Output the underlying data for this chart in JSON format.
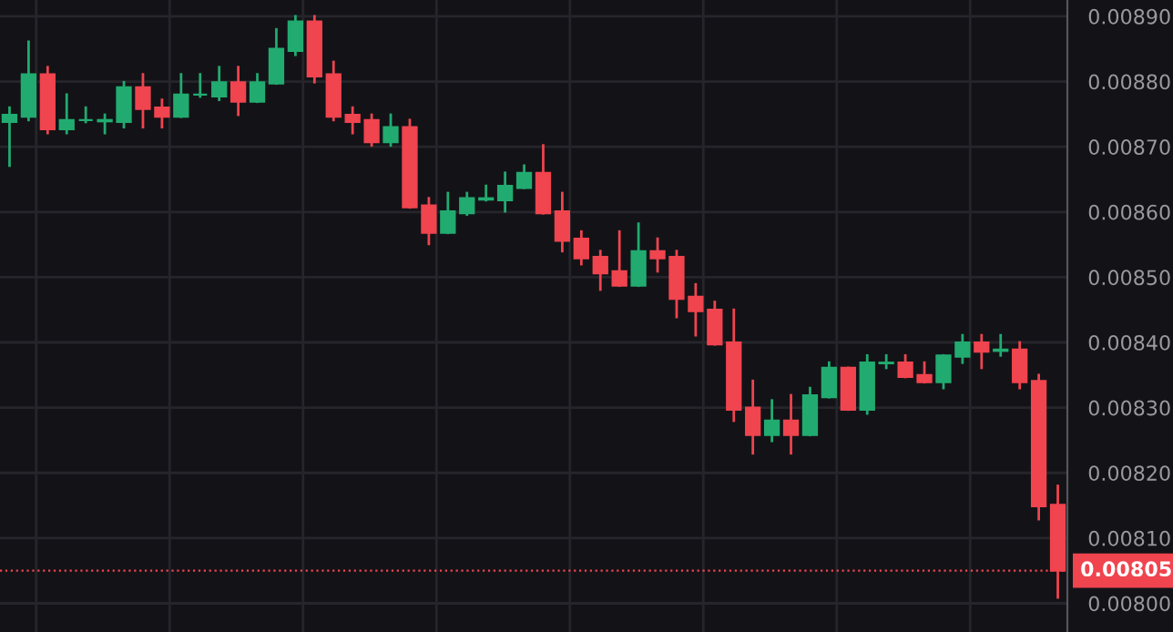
{
  "chart_data": {
    "type": "candlestick",
    "categories": [
      null,
      null,
      null,
      null,
      null,
      null,
      null,
      null,
      null,
      null,
      null,
      null,
      null,
      null,
      null,
      null,
      null,
      null,
      null,
      null,
      null,
      null,
      null,
      null,
      null,
      null,
      null,
      null,
      null,
      null,
      null,
      null,
      null,
      null,
      null,
      null,
      null,
      null,
      null,
      null,
      null,
      null,
      null,
      null,
      null,
      null,
      null,
      null,
      null,
      null,
      null,
      null,
      null,
      null,
      null,
      null
    ],
    "ohlc": [
      [
        0.008738,
        0.00876,
        0.008671,
        0.008749
      ],
      [
        0.008746,
        0.008861,
        0.008741,
        0.008811
      ],
      [
        0.008811,
        0.008822,
        0.008721,
        0.008727
      ],
      [
        0.008727,
        0.00878,
        0.008721,
        0.008741
      ],
      [
        0.008741,
        0.00876,
        0.008738,
        0.008741
      ],
      [
        0.008739,
        0.008749,
        0.008721,
        0.008741
      ],
      [
        0.008738,
        0.008799,
        0.00873,
        0.008791
      ],
      [
        0.008791,
        0.008811,
        0.00873,
        0.008758
      ],
      [
        0.00876,
        0.008772,
        0.00873,
        0.008746
      ],
      [
        0.008746,
        0.008811,
        0.008746,
        0.00878
      ],
      [
        0.00878,
        0.008811,
        0.008777,
        0.00878
      ],
      [
        0.008777,
        0.008822,
        0.008772,
        0.008799
      ],
      [
        0.008799,
        0.008822,
        0.008749,
        0.008769
      ],
      [
        0.008769,
        0.008811,
        0.008769,
        0.008799
      ],
      [
        0.008797,
        0.00888,
        0.008797,
        0.00885
      ],
      [
        0.008847,
        0.0089,
        0.008841,
        0.008892
      ],
      [
        0.008892,
        0.0089,
        0.008799,
        0.008808
      ],
      [
        0.008811,
        0.00883,
        0.008741,
        0.008746
      ],
      [
        0.008749,
        0.00876,
        0.008721,
        0.008738
      ],
      [
        0.008741,
        0.008749,
        0.008702,
        0.008707
      ],
      [
        0.008707,
        0.008749,
        0.008702,
        0.00873
      ],
      [
        0.00873,
        0.008741,
        0.008607,
        0.008607
      ],
      [
        0.00861,
        0.008621,
        0.008551,
        0.008568
      ],
      [
        0.008568,
        0.008629,
        0.008568,
        0.008601
      ],
      [
        0.008598,
        0.008629,
        0.008596,
        0.008621
      ],
      [
        0.008619,
        0.00864,
        0.008618,
        0.008621
      ],
      [
        0.008618,
        0.00866,
        0.008601,
        0.00864
      ],
      [
        0.008637,
        0.008671,
        0.008637,
        0.00866
      ],
      [
        0.00866,
        0.008702,
        0.008598,
        0.008598
      ],
      [
        0.008601,
        0.008629,
        0.00854,
        0.008556
      ],
      [
        0.008559,
        0.00857,
        0.00852,
        0.008529
      ],
      [
        0.008531,
        0.00854,
        0.008481,
        0.008506
      ],
      [
        0.008509,
        0.00857,
        0.008487,
        0.008487
      ],
      [
        0.008487,
        0.008582,
        0.008487,
        0.00854
      ],
      [
        0.00854,
        0.008559,
        0.008509,
        0.008529
      ],
      [
        0.008531,
        0.00854,
        0.008439,
        0.008467
      ],
      [
        0.00847,
        0.008489,
        0.008411,
        0.008448
      ],
      [
        0.00845,
        0.008462,
        0.008397,
        0.008397
      ],
      [
        0.0084,
        0.00845,
        0.00828,
        0.008297
      ],
      [
        0.0083,
        0.008341,
        0.00823,
        0.008258
      ],
      [
        0.008258,
        0.008311,
        0.008249,
        0.00828
      ],
      [
        0.00828,
        0.008319,
        0.00823,
        0.008258
      ],
      [
        0.008258,
        0.00833,
        0.008258,
        0.008319
      ],
      [
        0.008316,
        0.008369,
        0.008316,
        0.008361
      ],
      [
        0.008361,
        0.008361,
        0.008297,
        0.008297
      ],
      [
        0.008297,
        0.00838,
        0.008291,
        0.008369
      ],
      [
        0.008368,
        0.00838,
        0.008361,
        0.008369
      ],
      [
        0.008369,
        0.00838,
        0.008347,
        0.008347
      ],
      [
        0.00835,
        0.008369,
        0.008339,
        0.008339
      ],
      [
        0.008339,
        0.00838,
        0.00833,
        0.00838
      ],
      [
        0.008378,
        0.008411,
        0.008369,
        0.0084
      ],
      [
        0.0084,
        0.008411,
        0.008361,
        0.008386
      ],
      [
        0.008387,
        0.008411,
        0.00838,
        0.008389
      ],
      [
        0.008389,
        0.0084,
        0.00833,
        0.008339
      ],
      [
        0.008341,
        0.00835,
        0.008129,
        0.008149
      ],
      [
        0.008151,
        0.00818,
        0.008009,
        0.00805
      ]
    ],
    "colors": [
      "#22ab70",
      "#22ab70",
      "#f0444f",
      "#22ab70",
      "#22ab70",
      "#22ab70",
      "#22ab70",
      "#f0444f",
      "#f0444f",
      "#22ab70",
      "#22ab70",
      "#22ab70",
      "#f0444f",
      "#22ab70",
      "#22ab70",
      "#22ab70",
      "#f0444f",
      "#f0444f",
      "#f0444f",
      "#f0444f",
      "#22ab70",
      "#f0444f",
      "#f0444f",
      "#22ab70",
      "#22ab70",
      "#22ab70",
      "#22ab70",
      "#22ab70",
      "#f0444f",
      "#f0444f",
      "#f0444f",
      "#f0444f",
      "#f0444f",
      "#22ab70",
      "#f0444f",
      "#f0444f",
      "#f0444f",
      "#f0444f",
      "#f0444f",
      "#f0444f",
      "#22ab70",
      "#f0444f",
      "#22ab70",
      "#22ab70",
      "#f0444f",
      "#22ab70",
      "#22ab70",
      "#f0444f",
      "#f0444f",
      "#22ab70",
      "#22ab70",
      "#f0444f",
      "#22ab70",
      "#f0444f",
      "#f0444f",
      "#f0444f"
    ],
    "ylim": [
      0.007956,
      0.008925
    ],
    "yticks": [
      {
        "value": 0.008,
        "label": "0.00800"
      },
      {
        "value": 0.0081,
        "label": "0.00810"
      },
      {
        "value": 0.0082,
        "label": "0.00820"
      },
      {
        "value": 0.0083,
        "label": "0.00830"
      },
      {
        "value": 0.0084,
        "label": "0.00840"
      },
      {
        "value": 0.0085,
        "label": "0.00850"
      },
      {
        "value": 0.0086,
        "label": "0.00860"
      },
      {
        "value": 0.0087,
        "label": "0.00870"
      },
      {
        "value": 0.0088,
        "label": "0.00880"
      },
      {
        "value": 0.0089,
        "label": "0.00890"
      }
    ],
    "tick_labels": "y",
    "grid": true,
    "ref_lines": [
      {
        "axis": "y",
        "value": 0.00805,
        "label": "0.00805",
        "color": "#f0444f",
        "line_style": "dotted"
      }
    ]
  }
}
